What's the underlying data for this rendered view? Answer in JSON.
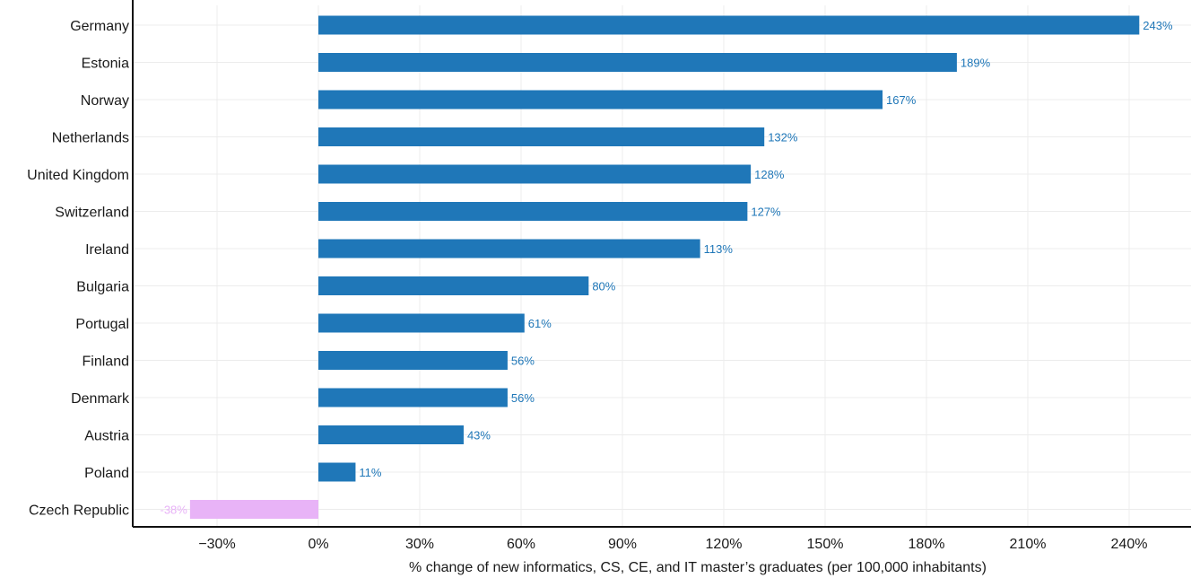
{
  "chart_data": {
    "type": "bar",
    "orientation": "horizontal",
    "categories": [
      "Germany",
      "Estonia",
      "Norway",
      "Netherlands",
      "United Kingdom",
      "Switzerland",
      "Ireland",
      "Bulgaria",
      "Portugal",
      "Finland",
      "Denmark",
      "Austria",
      "Poland",
      "Czech Republic"
    ],
    "values": [
      243,
      189,
      167,
      132,
      128,
      127,
      113,
      80,
      61,
      56,
      56,
      43,
      11,
      -38
    ],
    "data_labels": [
      "243%",
      "189%",
      "167%",
      "132%",
      "128%",
      "127%",
      "113%",
      "80%",
      "61%",
      "56%",
      "56%",
      "43%",
      "11%",
      "-38%"
    ],
    "xlabel": "% change of new informatics, CS, CE, and IT master’s graduates (per 100,000 inhabitants)",
    "ylabel": "",
    "xlim": [
      -40,
      250
    ],
    "x_ticks": [
      -30,
      0,
      30,
      60,
      90,
      120,
      150,
      180,
      210,
      240
    ],
    "x_tick_labels": [
      "−30%",
      "0%",
      "30%",
      "60%",
      "90%",
      "120%",
      "150%",
      "180%",
      "210%",
      "240%"
    ],
    "grid": true,
    "colors": {
      "positive": "#1f77b8",
      "negative": "#e8b3f7",
      "positive_label": "#1f77b8",
      "negative_label": "#e8b3f7",
      "axis": "#111111",
      "grid": "#ececec"
    }
  }
}
